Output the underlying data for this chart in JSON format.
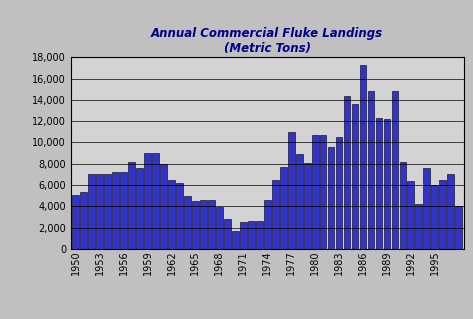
{
  "title_line1": "Annual Commercial Fluke Landings",
  "title_line2": "(Metric Tons)",
  "years": [
    1950,
    1951,
    1952,
    1953,
    1954,
    1955,
    1956,
    1957,
    1958,
    1959,
    1960,
    1961,
    1962,
    1963,
    1964,
    1965,
    1966,
    1967,
    1968,
    1969,
    1970,
    1971,
    1972,
    1973,
    1974,
    1975,
    1976,
    1977,
    1978,
    1979,
    1980,
    1981,
    1982,
    1983,
    1984,
    1985,
    1986,
    1987,
    1988,
    1989,
    1990,
    1991,
    1992,
    1993,
    1994,
    1995,
    1996,
    1997,
    1998
  ],
  "values": [
    5100,
    5300,
    7000,
    7000,
    7000,
    7200,
    7200,
    8200,
    7600,
    9000,
    9000,
    8000,
    6500,
    6200,
    5000,
    4500,
    4600,
    4600,
    3900,
    2800,
    1700,
    2500,
    2600,
    2600,
    4600,
    6500,
    7700,
    11000,
    8900,
    8100,
    10700,
    10700,
    9600,
    10500,
    14400,
    13600,
    17300,
    14800,
    12300,
    12200,
    14800,
    8200,
    6400,
    4200,
    7600,
    6000,
    6500,
    7000,
    4000
  ],
  "bar_color": "#3333cc",
  "bar_edge_color": "#000000",
  "background_color": "#c0c0c0",
  "plot_bg_color": "#d3d3d3",
  "title_color": "#00008b",
  "ylim": [
    0,
    18000
  ],
  "yticks": [
    0,
    2000,
    4000,
    6000,
    8000,
    10000,
    12000,
    14000,
    16000,
    18000
  ],
  "xtick_years": [
    1950,
    1953,
    1956,
    1959,
    1962,
    1965,
    1968,
    1971,
    1974,
    1977,
    1980,
    1983,
    1986,
    1989,
    1992,
    1995
  ]
}
